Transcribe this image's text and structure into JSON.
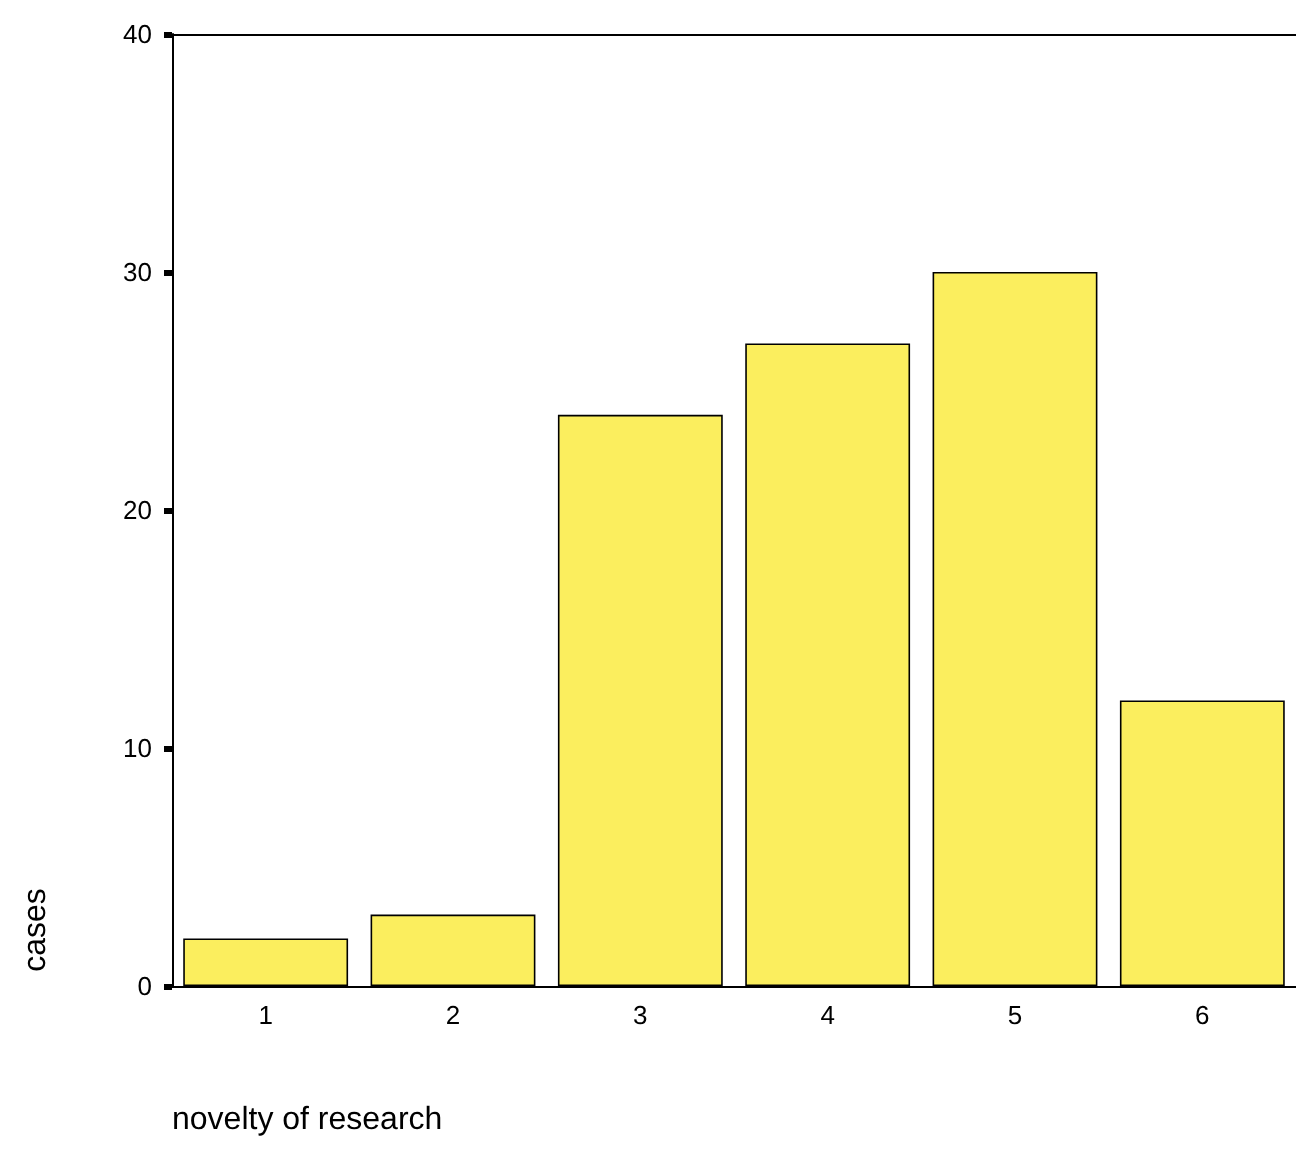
{
  "chart_data": {
    "type": "bar",
    "xlabel": "novelty of research",
    "ylabel": "cases",
    "categories": [
      "1",
      "2",
      "3",
      "4",
      "5",
      "6"
    ],
    "values": [
      2,
      3,
      24,
      27,
      30,
      12
    ],
    "color": "#fbee5e",
    "ylim": [
      0,
      40
    ],
    "yticks": [
      0,
      10,
      20,
      30,
      40
    ],
    "grid": false
  }
}
